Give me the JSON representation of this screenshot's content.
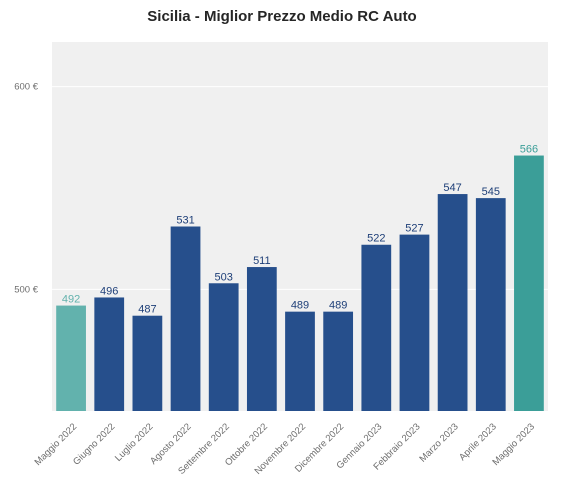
{
  "chart_data": {
    "type": "bar",
    "title": "Sicilia - Miglior Prezzo Medio RC Auto",
    "xlabel": "",
    "ylabel": "",
    "categories": [
      "Maggio 2022",
      "Giugno 2022",
      "Luglio 2022",
      "Agosto 2022",
      "Settembre 2022",
      "Ottobre 2022",
      "Novembre 2022",
      "Dicembre 2022",
      "Gennaio 2023",
      "Febbraio 2023",
      "Marzo 2023",
      "Aprile 2023",
      "Maggio 2023"
    ],
    "values": [
      492,
      496,
      487,
      531,
      503,
      511,
      489,
      489,
      522,
      527,
      547,
      545,
      566
    ],
    "value_labels": [
      "492",
      "496",
      "487",
      "531",
      "503",
      "511",
      "489",
      "489",
      "522",
      "527",
      "547",
      "545",
      "566"
    ],
    "ylim": [
      440,
      622
    ],
    "yticks": [
      500,
      600
    ],
    "ytick_labels": [
      "500 €",
      "600 €"
    ],
    "grid": true,
    "colors": {
      "bar": "#264f8c",
      "first_bar": "#62b2ad",
      "last_bar": "#3b9e98",
      "label": "#1e3f78",
      "first_label": "#62b2ad",
      "last_label": "#3b9e98",
      "plot_background": "#f0f0f0",
      "gridline": "#ffffff"
    }
  }
}
